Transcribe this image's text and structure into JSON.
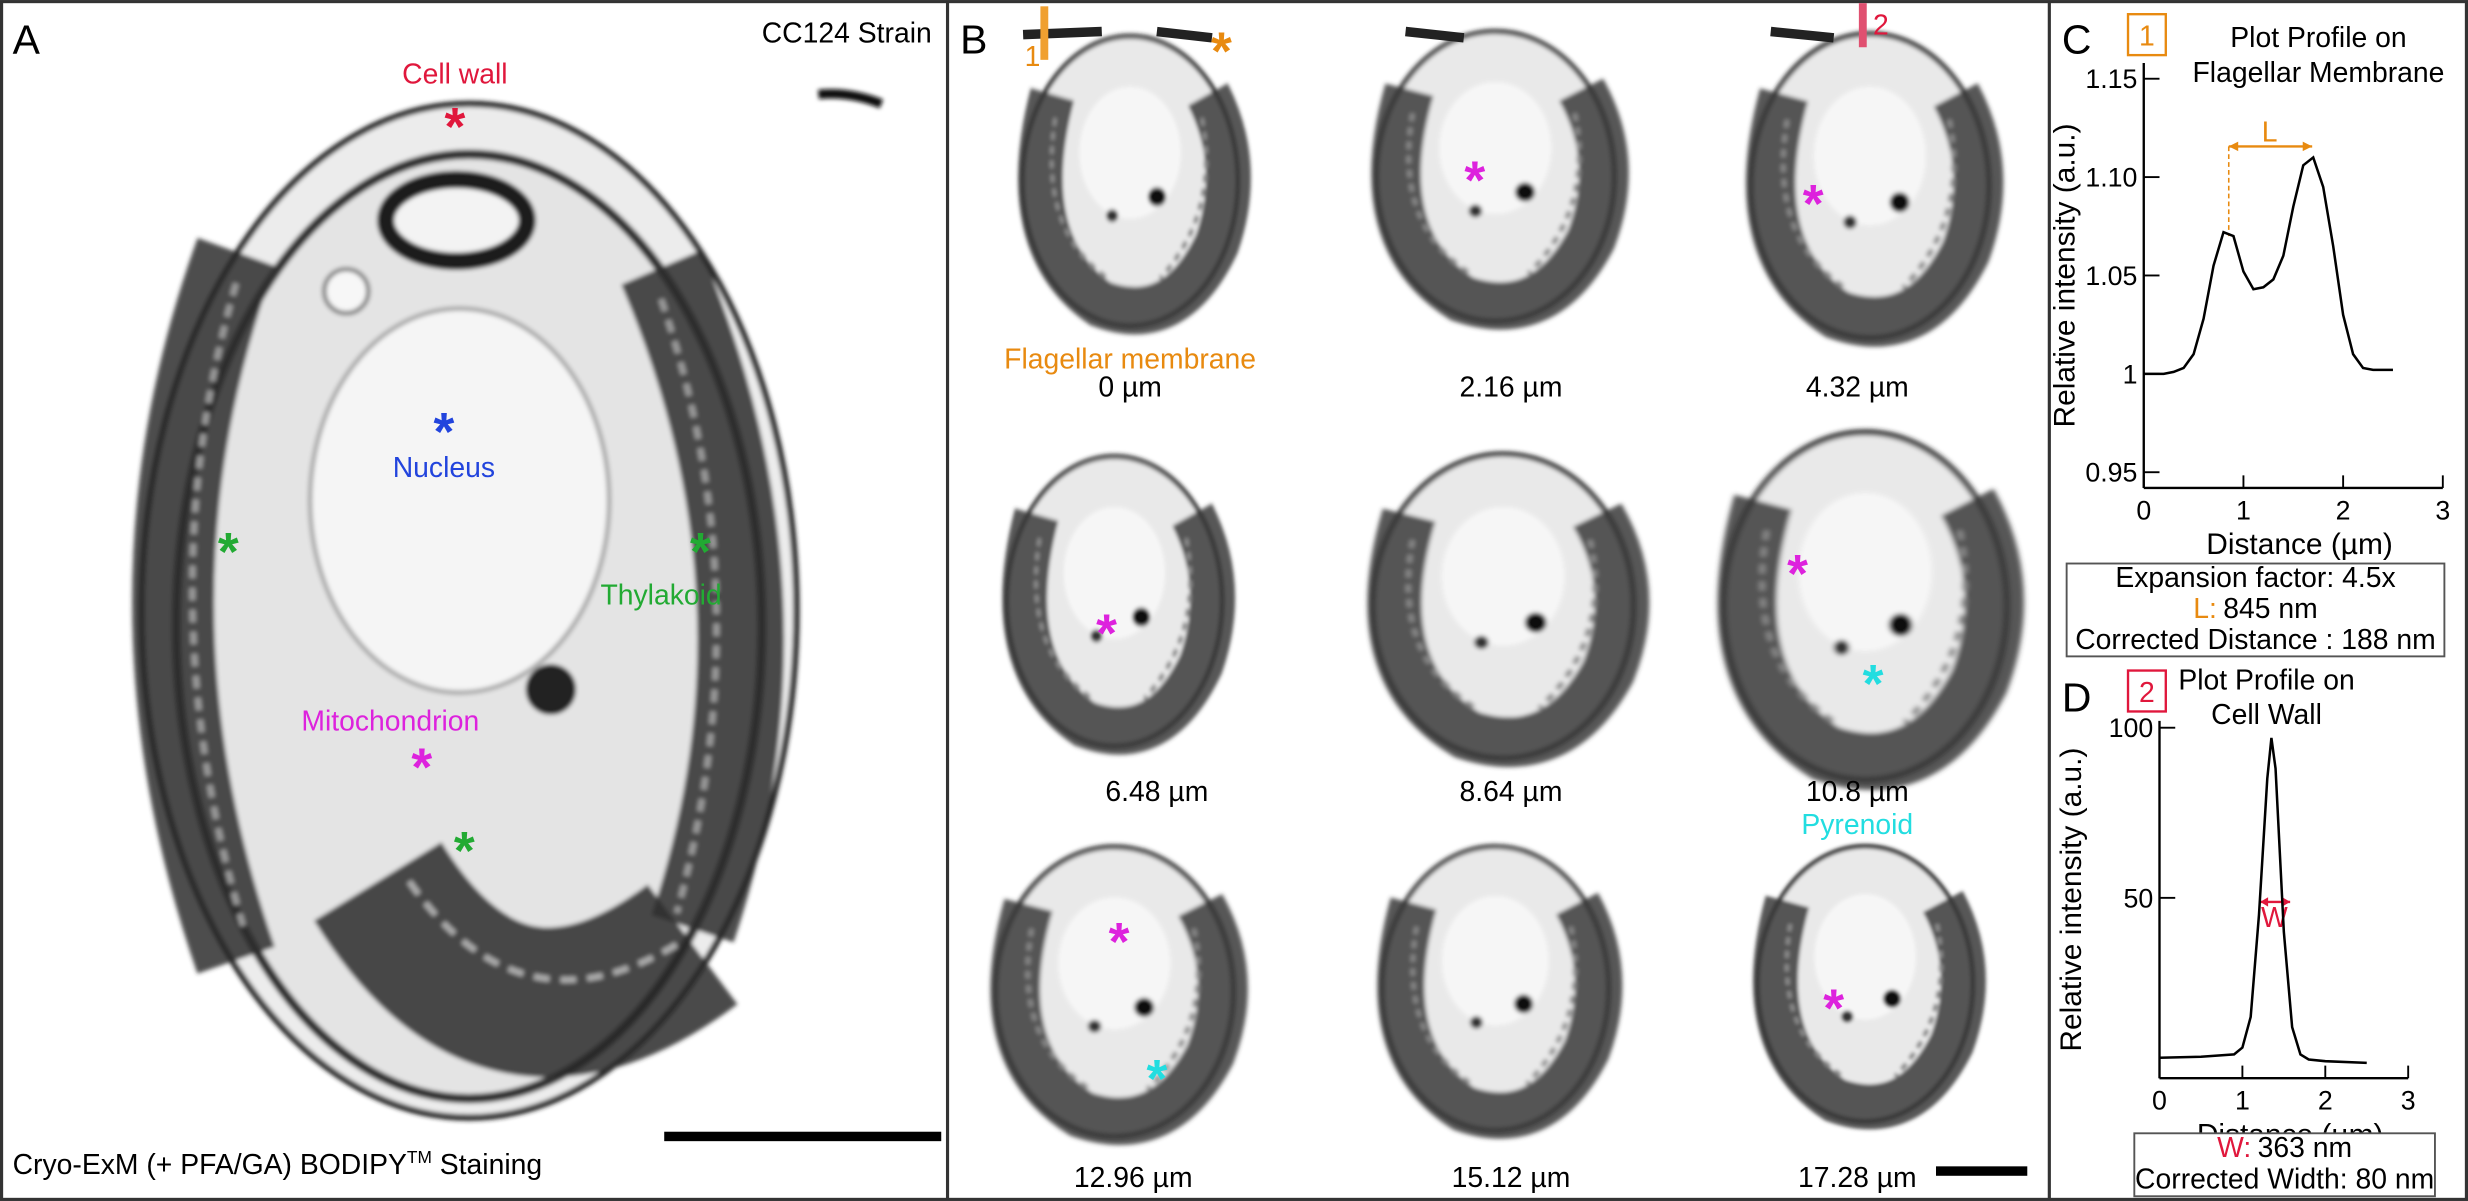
{
  "asterisk": "*",
  "panel_a": {
    "letter": "A",
    "strain": "CC124 Strain",
    "labels": {
      "cell_wall": "Cell wall",
      "nucleus": "Nucleus",
      "thylakoid": "Thylakoid",
      "mitochondrion": "Mitochondrion"
    },
    "caption": {
      "before": "Cryo-ExM (+ PFA/GA) BODIPY",
      "superscript": "TM",
      "after": "Staining"
    }
  },
  "panel_b": {
    "letter": "B",
    "flagellar_membrane": "Flagellar membrane",
    "pyrenoid": "Pyrenoid",
    "markers": [
      "1",
      "2"
    ],
    "depths": [
      "0 µm",
      "2.16 µm",
      "4.32 µm",
      "6.48 µm",
      "8.64 µm",
      "10.8 µm",
      "12.96 µm",
      "15.12 µm",
      "17.28 µm"
    ]
  },
  "chart_data": [
    {
      "type": "line",
      "panel": "C",
      "marker": "1",
      "title": [
        "Plot Profile on",
        "Flagellar Membrane"
      ],
      "xlabel": "Distance (µm)",
      "ylabel": "Relative intensity (a.u.)",
      "x": [
        0,
        0.1,
        0.2,
        0.3,
        0.4,
        0.5,
        0.6,
        0.7,
        0.8,
        0.9,
        1.0,
        1.1,
        1.2,
        1.3,
        1.4,
        1.5,
        1.6,
        1.7,
        1.8,
        1.9,
        2.0,
        2.1,
        2.2,
        2.3,
        2.4,
        2.5
      ],
      "series": [
        {
          "color": "#000000",
          "values": [
            1.0,
            1.0,
            1.0,
            1.001,
            1.003,
            1.01,
            1.028,
            1.055,
            1.072,
            1.07,
            1.052,
            1.043,
            1.044,
            1.048,
            1.06,
            1.085,
            1.106,
            1.11,
            1.095,
            1.065,
            1.03,
            1.01,
            1.003,
            1.002,
            1.002,
            1.002
          ]
        }
      ],
      "xlim": [
        0,
        3
      ],
      "ylim": [
        0.942,
        1.158
      ],
      "xticks": [
        0,
        1,
        2,
        3
      ],
      "yticks": [
        0.95,
        1,
        1.05,
        {
          "value": 1.1,
          "label": "1.10"
        },
        1.15
      ],
      "annotation": "L",
      "info": {
        "first": "Expansion factor: 4.5x",
        "key": "L:",
        "key_value": "845 nm",
        "last": "Corrected Distance : 188 nm"
      }
    },
    {
      "type": "line",
      "panel": "D",
      "marker": "2",
      "title": [
        "Plot Profile on",
        "Cell Wall"
      ],
      "xlabel": "Distance (µm)",
      "ylabel": "Relative intensity (a.u.)",
      "x": [
        0,
        0.5,
        0.9,
        1.0,
        1.1,
        1.2,
        1.3,
        1.35,
        1.4,
        1.5,
        1.6,
        1.7,
        1.8,
        2.0,
        2.5
      ],
      "series": [
        {
          "color": "#000000",
          "values": [
            3,
            3.3,
            4,
            6,
            15,
            45,
            85,
            97,
            88,
            40,
            12,
            4,
            2.5,
            2,
            1.5
          ]
        }
      ],
      "xlim": [
        0,
        3
      ],
      "ylim": [
        -3,
        102
      ],
      "xticks": [
        0,
        1,
        2,
        3
      ],
      "yticks": [
        50,
        100
      ],
      "annotation": "W",
      "info": {
        "key": "W:",
        "key_value": "363 nm",
        "last": "Corrected Width: 80 nm"
      }
    }
  ]
}
